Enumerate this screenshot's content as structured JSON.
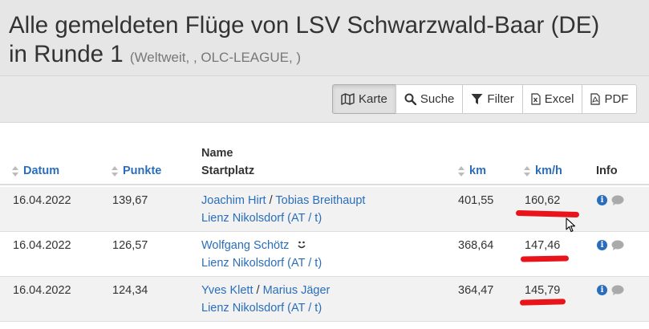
{
  "header": {
    "title_line1": "Alle gemeldeten Flüge von LSV Schwarzwald-Baar (DE)",
    "title_line2": "in Runde 1",
    "subtitle": "(Weltweit, , OLC-LEAGUE, )"
  },
  "toolbar": {
    "karte": "Karte",
    "suche": "Suche",
    "filter": "Filter",
    "excel": "Excel",
    "pdf": "PDF"
  },
  "columns": {
    "datum": "Datum",
    "punkte": "Punkte",
    "name": "Name",
    "startplatz": "Startplatz",
    "km": "km",
    "kmh": "km/h",
    "info": "Info"
  },
  "rows": [
    {
      "datum": "16.04.2022",
      "punkte": "139,67",
      "pilot1": "Joachim Hirt",
      "separator": "/",
      "pilot2": "Tobias Breithaupt",
      "startplatz": "Lienz Nikolsdorf (AT / t)",
      "km": "401,55",
      "kmh": "160,62"
    },
    {
      "datum": "16.04.2022",
      "punkte": "126,57",
      "pilot1": "Wolfgang Schötz",
      "startplatz": "Lienz Nikolsdorf (AT / t)",
      "km": "368,64",
      "kmh": "147,46"
    },
    {
      "datum": "16.04.2022",
      "punkte": "124,34",
      "pilot1": "Yves Klett",
      "separator": "/",
      "pilot2": "Marius Jäger",
      "startplatz": "Lienz Nikolsdorf (AT / t)",
      "km": "364,47",
      "kmh": "145,79"
    }
  ],
  "colors": {
    "link": "#2a6ebb",
    "annotation": "#e8141a",
    "header_bg": "#e6e6e6",
    "row_stripe": "#f2f2f2"
  },
  "icons": [
    "map-icon",
    "search-icon",
    "filter-icon",
    "excel-file-icon",
    "pdf-file-icon",
    "sort-icon",
    "info-icon",
    "comment-icon",
    "smiley-icon",
    "mouse-cursor-icon"
  ]
}
